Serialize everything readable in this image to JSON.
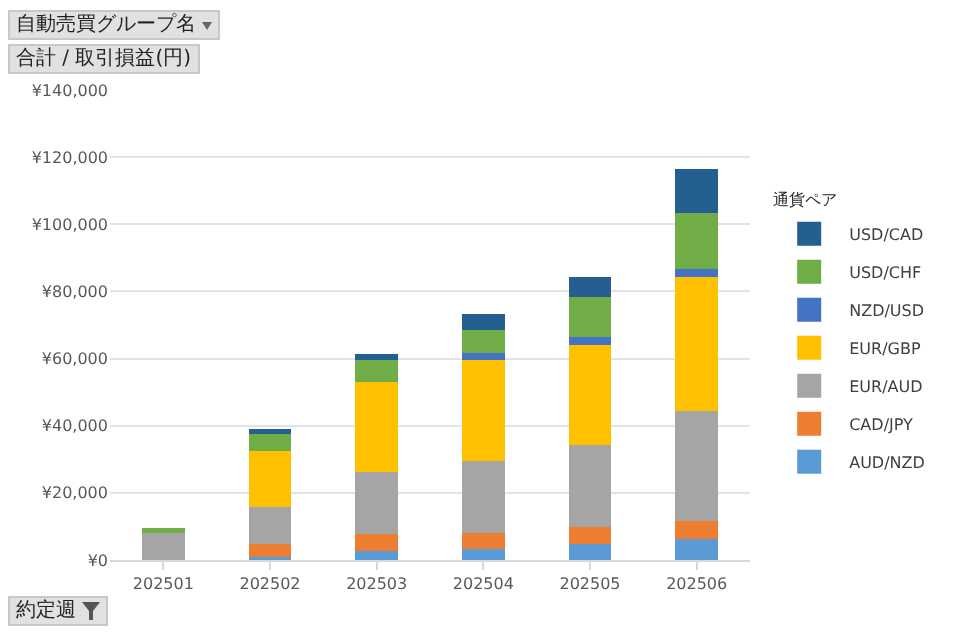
{
  "chart_data": {
    "type": "bar",
    "stacked": true,
    "legend": "right",
    "grid": "y",
    "legend_title": "通貨ペア",
    "annotations": [
      "自動売買グループ名",
      "合計 / 取引損益(円)",
      "約定週"
    ],
    "categories": [
      "202501",
      "202502",
      "202503",
      "202504",
      "202505",
      "202506"
    ],
    "ylim": [
      0,
      140000
    ],
    "yticks": [
      {
        "value": 0,
        "label": "¥0"
      },
      {
        "value": 20000,
        "label": "¥20,000"
      },
      {
        "value": 40000,
        "label": "¥40,000"
      },
      {
        "value": 60000,
        "label": "¥60,000"
      },
      {
        "value": 80000,
        "label": "¥80,000"
      },
      {
        "value": 100000,
        "label": "¥100,000"
      },
      {
        "value": 120000,
        "label": "¥120,000"
      },
      {
        "value": 140000,
        "label": "¥140,000"
      }
    ],
    "series": [
      {
        "name": "AUD/NZD",
        "color": "#5b9bd5",
        "values": [
          0,
          1000,
          2800,
          3200,
          4800,
          6400
        ]
      },
      {
        "name": "CAD/JPY",
        "color": "#ed7d31",
        "values": [
          0,
          3800,
          5000,
          4800,
          5000,
          5100
        ]
      },
      {
        "name": "EUR/AUD",
        "color": "#a5a5a5",
        "values": [
          8000,
          10900,
          18300,
          21500,
          24600,
          32900
        ]
      },
      {
        "name": "EUR/GBP",
        "color": "#ffc000",
        "values": [
          0,
          16900,
          27000,
          30200,
          29700,
          40000
        ]
      },
      {
        "name": "NZD/USD",
        "color": "#4472c4",
        "values": [
          0,
          0,
          0,
          2000,
          2200,
          2200
        ]
      },
      {
        "name": "USD/CHF",
        "color": "#70ad47",
        "values": [
          1400,
          5000,
          6600,
          6800,
          11900,
          16900
        ]
      },
      {
        "name": "USD/CAD",
        "color": "#255e91",
        "values": [
          0,
          1400,
          1800,
          4900,
          6200,
          12900
        ]
      }
    ]
  }
}
